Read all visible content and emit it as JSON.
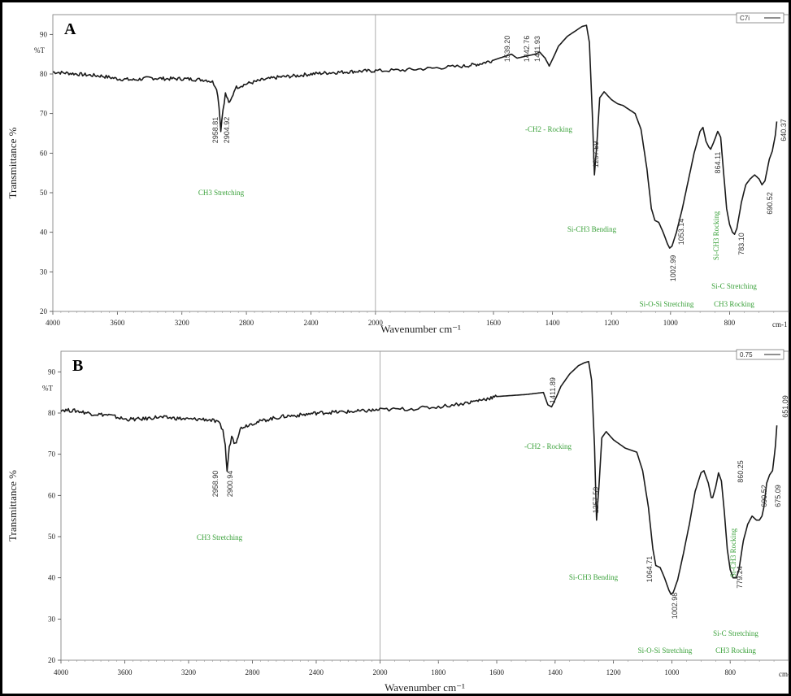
{
  "chart_data": [
    {
      "type": "line",
      "panel": "A",
      "legend": "C7i",
      "xlabel": "Wavenumber cm⁻¹",
      "ylabel": "Transmittance %",
      "unit_label": "cm-1",
      "y_top_label": "%T",
      "xlim": [
        4000,
        600
      ],
      "ylim": [
        20,
        95
      ],
      "x_ticks": [
        4000,
        3600,
        3200,
        2800,
        2400,
        2000,
        1600,
        1400,
        1200,
        1000,
        800
      ],
      "y_ticks": [
        20,
        30,
        40,
        50,
        60,
        70,
        80,
        90
      ],
      "x": [
        4000,
        3900,
        3800,
        3700,
        3600,
        3500,
        3400,
        3300,
        3200,
        3100,
        3050,
        3010,
        2985,
        2970,
        2959,
        2945,
        2930,
        2915,
        2905,
        2890,
        2870,
        2800,
        2700,
        2600,
        2500,
        2400,
        2300,
        2200,
        2100,
        2000,
        1900,
        1800,
        1700,
        1650,
        1600,
        1560,
        1539,
        1520,
        1490,
        1460,
        1443,
        1425,
        1411,
        1395,
        1380,
        1350,
        1320,
        1300,
        1285,
        1275,
        1265,
        1258,
        1250,
        1240,
        1225,
        1200,
        1180,
        1160,
        1140,
        1120,
        1100,
        1080,
        1065,
        1053,
        1040,
        1025,
        1010,
        1003,
        995,
        980,
        960,
        940,
        920,
        900,
        890,
        880,
        870,
        864,
        855,
        840,
        830,
        820,
        810,
        800,
        790,
        783,
        775,
        760,
        745,
        730,
        715,
        700,
        690,
        680,
        665,
        655,
        645,
        640
      ],
      "y": [
        80.5,
        80.2,
        79.8,
        79.5,
        78.8,
        78.5,
        79,
        78.8,
        78.8,
        78.6,
        78.5,
        78,
        76.5,
        72,
        65.8,
        71,
        75,
        73.5,
        72.5,
        74,
        76.5,
        77.5,
        78.5,
        79.2,
        79.5,
        80,
        80.3,
        80.5,
        80.7,
        80.8,
        81,
        81.5,
        82,
        82.5,
        83.5,
        84.5,
        85,
        84,
        84.5,
        85,
        85.5,
        84,
        82,
        84.5,
        87,
        89.5,
        91,
        92,
        92.3,
        88,
        70,
        54.5,
        62,
        74,
        75.5,
        73.5,
        72.5,
        72,
        71,
        70,
        66,
        56,
        46,
        43,
        42.5,
        40,
        37,
        36,
        36.5,
        40,
        46,
        53,
        60,
        65.5,
        66.5,
        63,
        61.5,
        61,
        62.5,
        65.5,
        64,
        55,
        46,
        42,
        40,
        39.5,
        41,
        47.5,
        52,
        53.5,
        54.5,
        53.5,
        52,
        53,
        58.5,
        60.5,
        64.5,
        68
      ],
      "peak_labels": [
        {
          "x": 2958.81,
          "label": "2958.81"
        },
        {
          "x": 2904.92,
          "label": "2904.92"
        },
        {
          "x": 1539.2,
          "label": "1539.20"
        },
        {
          "x": 1442.76,
          "label": "1442.76"
        },
        {
          "x": 1411.93,
          "label": "1411.93"
        },
        {
          "x": 1257.59,
          "label": "1257.59"
        },
        {
          "x": 1053.14,
          "label": "1053.14"
        },
        {
          "x": 1002.99,
          "label": "1002.99"
        },
        {
          "x": 864.11,
          "label": "864.11"
        },
        {
          "x": 783.1,
          "label": "783.10"
        },
        {
          "x": 690.52,
          "label": "690.52"
        },
        {
          "x": 640.37,
          "label": "640.37"
        }
      ],
      "annotations": [
        "CH3 Stretching",
        "-CH2 - Rocking",
        "Si-CH3 Bending",
        "Si-O-Si Stretching",
        "Si-CH3 Rocking",
        "Si-C Stretching",
        "CH3 Rocking"
      ]
    },
    {
      "type": "line",
      "panel": "B",
      "legend": "0.75",
      "xlabel": "Wavenumber cm⁻¹",
      "ylabel": "Transmittance %",
      "unit_label": "cm-",
      "y_top_label": "%T",
      "xlim": [
        4000,
        600
      ],
      "ylim": [
        20,
        95
      ],
      "x_ticks": [
        4000,
        3600,
        3200,
        2800,
        2400,
        2000,
        1800,
        1600,
        1400,
        1200,
        1000,
        800
      ],
      "y_ticks": [
        20,
        30,
        40,
        50,
        60,
        70,
        80,
        90
      ],
      "x": [
        4000,
        3900,
        3800,
        3700,
        3600,
        3500,
        3400,
        3300,
        3200,
        3100,
        3050,
        3010,
        2985,
        2970,
        2959,
        2945,
        2930,
        2915,
        2901,
        2890,
        2870,
        2800,
        2700,
        2600,
        2500,
        2400,
        2300,
        2200,
        2100,
        2000,
        1900,
        1800,
        1700,
        1600,
        1500,
        1440,
        1425,
        1412,
        1395,
        1380,
        1350,
        1320,
        1300,
        1285,
        1275,
        1265,
        1258,
        1250,
        1240,
        1225,
        1200,
        1180,
        1160,
        1140,
        1120,
        1100,
        1080,
        1065,
        1055,
        1040,
        1025,
        1010,
        1003,
        995,
        980,
        960,
        940,
        920,
        900,
        890,
        875,
        865,
        860,
        850,
        840,
        830,
        820,
        810,
        800,
        790,
        779,
        770,
        755,
        740,
        725,
        710,
        700,
        691,
        685,
        675,
        665,
        655,
        645,
        640
      ],
      "y": [
        80.8,
        80.5,
        79.8,
        79.5,
        78.5,
        78.5,
        79,
        78.8,
        78.5,
        78.5,
        78.2,
        77.5,
        76,
        72,
        65.8,
        71.5,
        74.5,
        73,
        73.2,
        74.5,
        76.5,
        77.5,
        78.5,
        79.2,
        79.5,
        80,
        80.2,
        80.3,
        80.5,
        80.8,
        81,
        81.5,
        82.5,
        84,
        84.5,
        85,
        82,
        81.5,
        84,
        86.5,
        89.5,
        91.5,
        92.2,
        92.5,
        88,
        72,
        54,
        62,
        74,
        75.5,
        73.5,
        72.5,
        71.5,
        71,
        70.5,
        66,
        57,
        47,
        43,
        42.5,
        40,
        37,
        36,
        36.5,
        39.5,
        46,
        53,
        61,
        65.5,
        66,
        63,
        59.5,
        59.5,
        62,
        65.5,
        63.5,
        56,
        47,
        42,
        40,
        40,
        42,
        49,
        53,
        55,
        54,
        54,
        55,
        57,
        63,
        65,
        66,
        72,
        77
      ]
    }
  ],
  "peak_labels_b": [
    "2958.90",
    "2900.94",
    "1411.89",
    "1257.59",
    "1064.71",
    "1002.98",
    "860.25",
    "779.24",
    "690.52",
    "675.09",
    "651.09"
  ],
  "annotations_b": [
    "CH3 Stretching",
    "-CH2 - Rocking",
    "Si-CH3 Bending",
    "Si-O-Si Stretching",
    "Si-CH3 Rocking",
    "Si-C Stretching",
    "CH3 Rocking"
  ]
}
